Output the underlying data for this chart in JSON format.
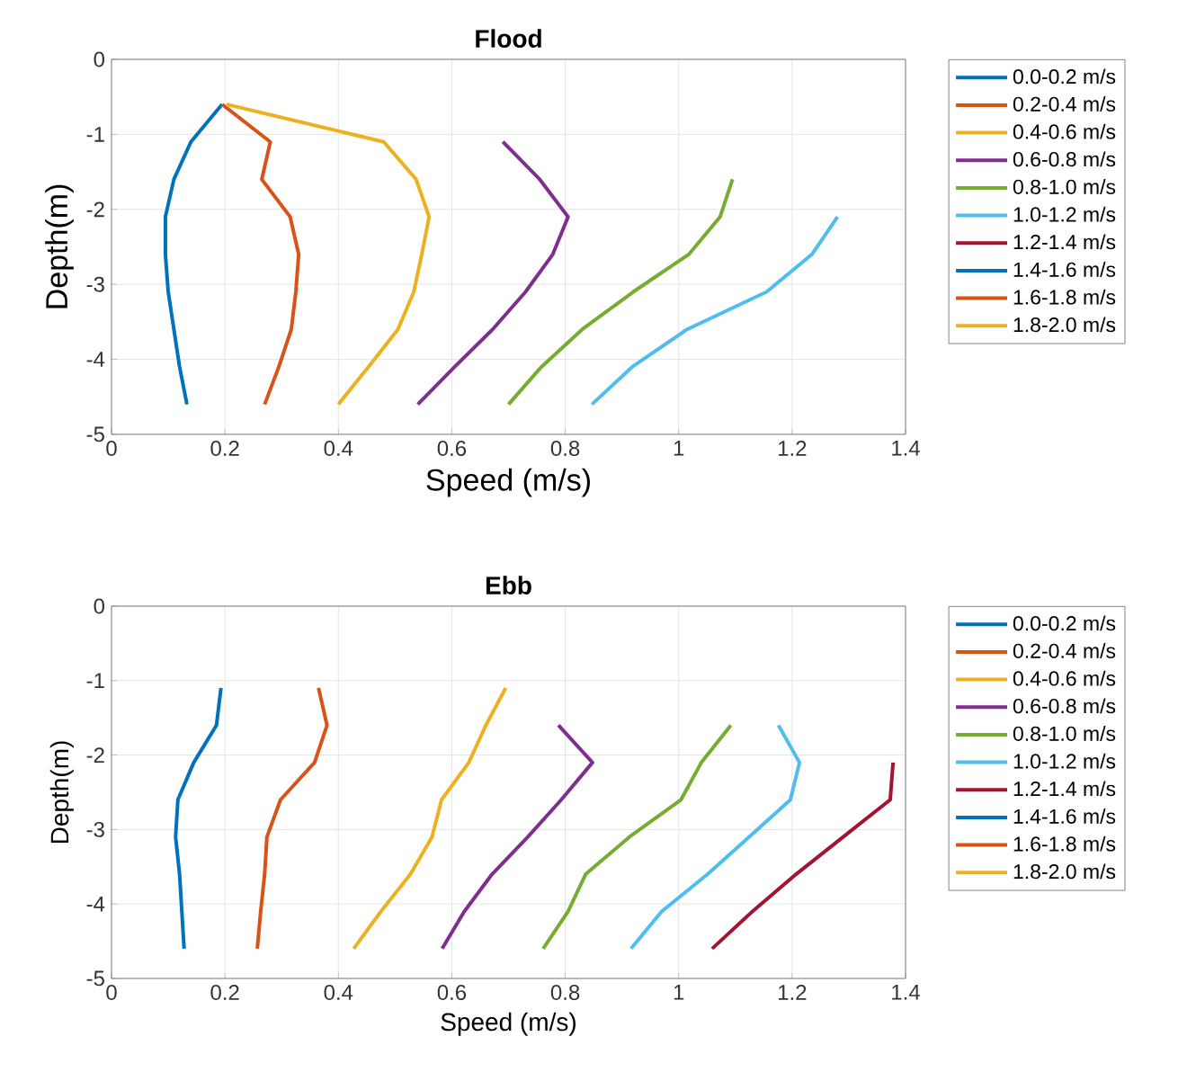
{
  "chart_data": [
    {
      "type": "line",
      "title": "Flood",
      "xlabel": "Speed (m/s)",
      "ylabel": "Depth(m)",
      "xlim": [
        0,
        1.4
      ],
      "ylim": [
        -5,
        0
      ],
      "xticks": [
        0,
        0.2,
        0.4,
        0.6,
        0.8,
        1,
        1.2,
        1.4
      ],
      "yticks": [
        -5,
        -4,
        -3,
        -2,
        -1,
        0
      ],
      "grid": true,
      "legend": "right",
      "line_style": "solid",
      "series": [
        {
          "name": "0.0-0.2 m/s",
          "color": "#0072bd",
          "x": [
            0.195,
            0.14,
            0.11,
            0.095,
            0.095,
            0.1,
            0.11,
            0.12,
            0.133
          ],
          "values": [
            -0.6,
            -1.1,
            -1.6,
            -2.1,
            -2.6,
            -3.1,
            -3.6,
            -4.1,
            -4.6
          ]
        },
        {
          "name": "0.2-0.4 m/s",
          "color": "#d95319",
          "x": [
            0.195,
            0.28,
            0.265,
            0.315,
            0.33,
            0.325,
            0.317,
            0.295,
            0.27
          ],
          "values": [
            -0.6,
            -1.1,
            -1.6,
            -2.1,
            -2.6,
            -3.1,
            -3.6,
            -4.1,
            -4.6
          ]
        },
        {
          "name": "0.4-0.6 m/s",
          "color": "#edb120",
          "x": [
            0.203,
            0.48,
            0.537,
            0.56,
            0.547,
            0.533,
            0.505,
            0.453,
            0.4
          ],
          "values": [
            -0.6,
            -1.1,
            -1.6,
            -2.1,
            -2.6,
            -3.1,
            -3.6,
            -4.1,
            -4.6
          ]
        },
        {
          "name": "0.6-0.8 m/s",
          "color": "#7e2f8e",
          "x": [
            0.69,
            0.755,
            0.805,
            0.778,
            0.73,
            0.672,
            0.605,
            0.54
          ],
          "values": [
            -1.1,
            -1.6,
            -2.1,
            -2.6,
            -3.1,
            -3.6,
            -4.1,
            -4.6
          ]
        },
        {
          "name": "0.8-1.0 m/s",
          "color": "#77ac30",
          "x": [
            1.095,
            1.073,
            1.018,
            0.92,
            0.83,
            0.758,
            0.7
          ],
          "values": [
            -1.6,
            -2.1,
            -2.6,
            -3.1,
            -3.6,
            -4.1,
            -4.6
          ]
        },
        {
          "name": "1.0-1.2 m/s",
          "color": "#4dbeee",
          "x": [
            1.28,
            1.235,
            1.155,
            1.015,
            0.918,
            0.847
          ],
          "values": [
            -2.1,
            -2.6,
            -3.1,
            -3.6,
            -4.1,
            -4.6
          ]
        },
        {
          "name": "1.2-1.4 m/s",
          "color": "#a2142f"
        },
        {
          "name": "1.4-1.6 m/s",
          "color": "#0072bd"
        },
        {
          "name": "1.6-1.8 m/s",
          "color": "#d95319"
        },
        {
          "name": "1.8-2.0 m/s",
          "color": "#edb120"
        }
      ]
    },
    {
      "type": "line",
      "title": "Ebb",
      "xlabel": "Speed (m/s)",
      "ylabel": "Depth(m)",
      "xlim": [
        0,
        1.4
      ],
      "ylim": [
        -5,
        0
      ],
      "xticks": [
        0,
        0.2,
        0.4,
        0.6,
        0.8,
        1,
        1.2,
        1.4
      ],
      "yticks": [
        -5,
        -4,
        -3,
        -2,
        -1,
        0
      ],
      "grid": true,
      "legend": "right",
      "line_style": "solid",
      "series": [
        {
          "name": "0.0-0.2 m/s",
          "color": "#0072bd",
          "x": [
            0.193,
            0.185,
            0.145,
            0.117,
            0.113,
            0.12,
            0.124,
            0.128
          ],
          "values": [
            -1.1,
            -1.6,
            -2.1,
            -2.6,
            -3.1,
            -3.6,
            -4.1,
            -4.6
          ]
        },
        {
          "name": "0.2-0.4 m/s",
          "color": "#d95319",
          "x": [
            0.365,
            0.38,
            0.358,
            0.298,
            0.274,
            0.27,
            0.263,
            0.257
          ],
          "values": [
            -1.1,
            -1.6,
            -2.1,
            -2.6,
            -3.1,
            -3.6,
            -4.1,
            -4.6
          ]
        },
        {
          "name": "0.4-0.6 m/s",
          "color": "#edb120",
          "x": [
            0.695,
            0.66,
            0.63,
            0.582,
            0.565,
            0.527,
            0.475,
            0.427
          ],
          "values": [
            -1.1,
            -1.6,
            -2.1,
            -2.6,
            -3.1,
            -3.6,
            -4.1,
            -4.6
          ]
        },
        {
          "name": "0.6-0.8 m/s",
          "color": "#7e2f8e",
          "x": [
            0.788,
            0.848,
            0.793,
            0.734,
            0.671,
            0.622,
            0.583
          ],
          "values": [
            -1.6,
            -2.1,
            -2.6,
            -3.1,
            -3.6,
            -4.1,
            -4.6
          ]
        },
        {
          "name": "0.8-1.0 m/s",
          "color": "#77ac30",
          "x": [
            1.092,
            1.04,
            1.004,
            0.913,
            0.836,
            0.805,
            0.761
          ],
          "values": [
            -1.6,
            -2.1,
            -2.6,
            -3.1,
            -3.6,
            -4.1,
            -4.6
          ]
        },
        {
          "name": "1.0-1.2 m/s",
          "color": "#4dbeee",
          "x": [
            1.176,
            1.213,
            1.197,
            1.124,
            1.051,
            0.97,
            0.916
          ],
          "values": [
            -1.6,
            -2.1,
            -2.6,
            -3.1,
            -3.6,
            -4.1,
            -4.6
          ]
        },
        {
          "name": "1.2-1.4 m/s",
          "color": "#a2142f",
          "x": [
            1.378,
            1.373,
            1.29,
            1.207,
            1.13,
            1.059
          ],
          "values": [
            -2.1,
            -2.6,
            -3.1,
            -3.6,
            -4.1,
            -4.6
          ]
        },
        {
          "name": "1.4-1.6 m/s",
          "color": "#0072bd"
        },
        {
          "name": "1.6-1.8 m/s",
          "color": "#d95319"
        },
        {
          "name": "1.8-2.0 m/s",
          "color": "#edb120"
        }
      ]
    }
  ]
}
